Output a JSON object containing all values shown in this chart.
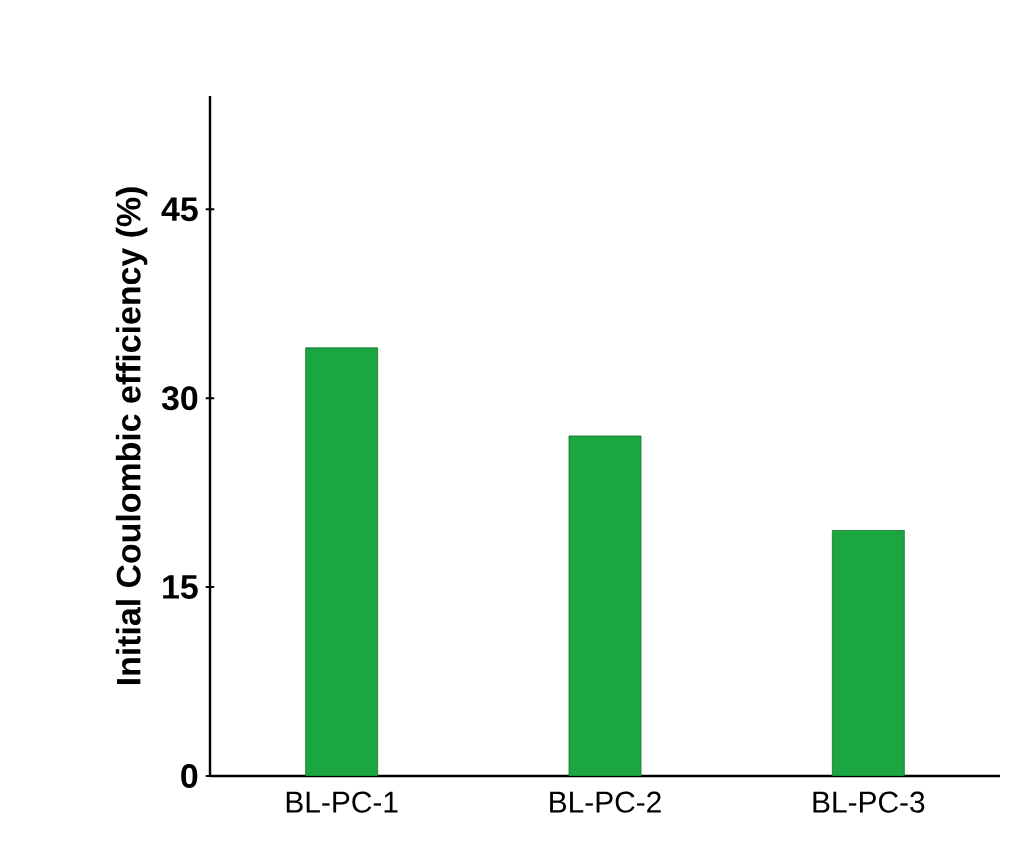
{
  "chart_data": {
    "type": "bar",
    "ylabel": "Initial Coulombic  efficiency (%)",
    "categories": [
      "BL-PC-1",
      "BL-PC-2",
      "BL-PC-3"
    ],
    "values": [
      34,
      27,
      19.5
    ],
    "color": "#1aa640",
    "ylim": [
      0,
      54
    ],
    "yticks": [
      0,
      15,
      30,
      45
    ],
    "grid": false
  }
}
